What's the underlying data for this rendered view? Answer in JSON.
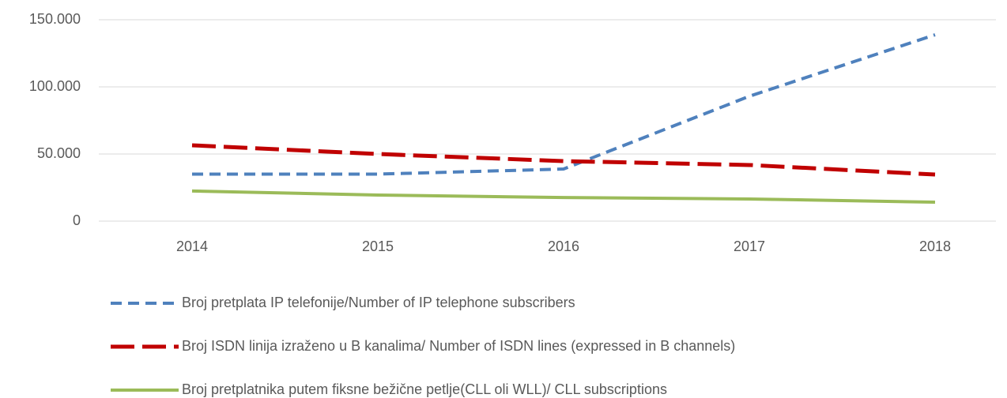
{
  "chart_data": {
    "type": "line",
    "categories": [
      "2014",
      "2015",
      "2016",
      "2017",
      "2018"
    ],
    "series": [
      {
        "name": "Broj pretplata IP telefonije/Number of IP telephone subscribers",
        "color": "#4f81bd",
        "dash": "14,8",
        "values": [
          35000,
          35000,
          38800,
          93000,
          138800
        ]
      },
      {
        "name": "Broj ISDN linija izraženo u B kanalima/ Number of ISDN lines (expressed in B channels)",
        "color": "#c00000",
        "dash": "30,10",
        "values": [
          56500,
          50000,
          44700,
          41800,
          34700
        ]
      },
      {
        "name": "Broj pretplatnika putem fiksne bežične petlje(CLL oli WLL)/ CLL subscriptions",
        "color": "#9bbb59",
        "dash": "none",
        "values": [
          22400,
          19400,
          17600,
          16500,
          14100
        ]
      }
    ],
    "ylim": [
      0,
      150000
    ],
    "yticks": [
      0,
      {
        "value": 50000,
        "label": "50.000"
      },
      {
        "value": 100000,
        "label": "100.000"
      },
      {
        "value": 150000,
        "label": "150.000"
      }
    ],
    "grid": true
  }
}
